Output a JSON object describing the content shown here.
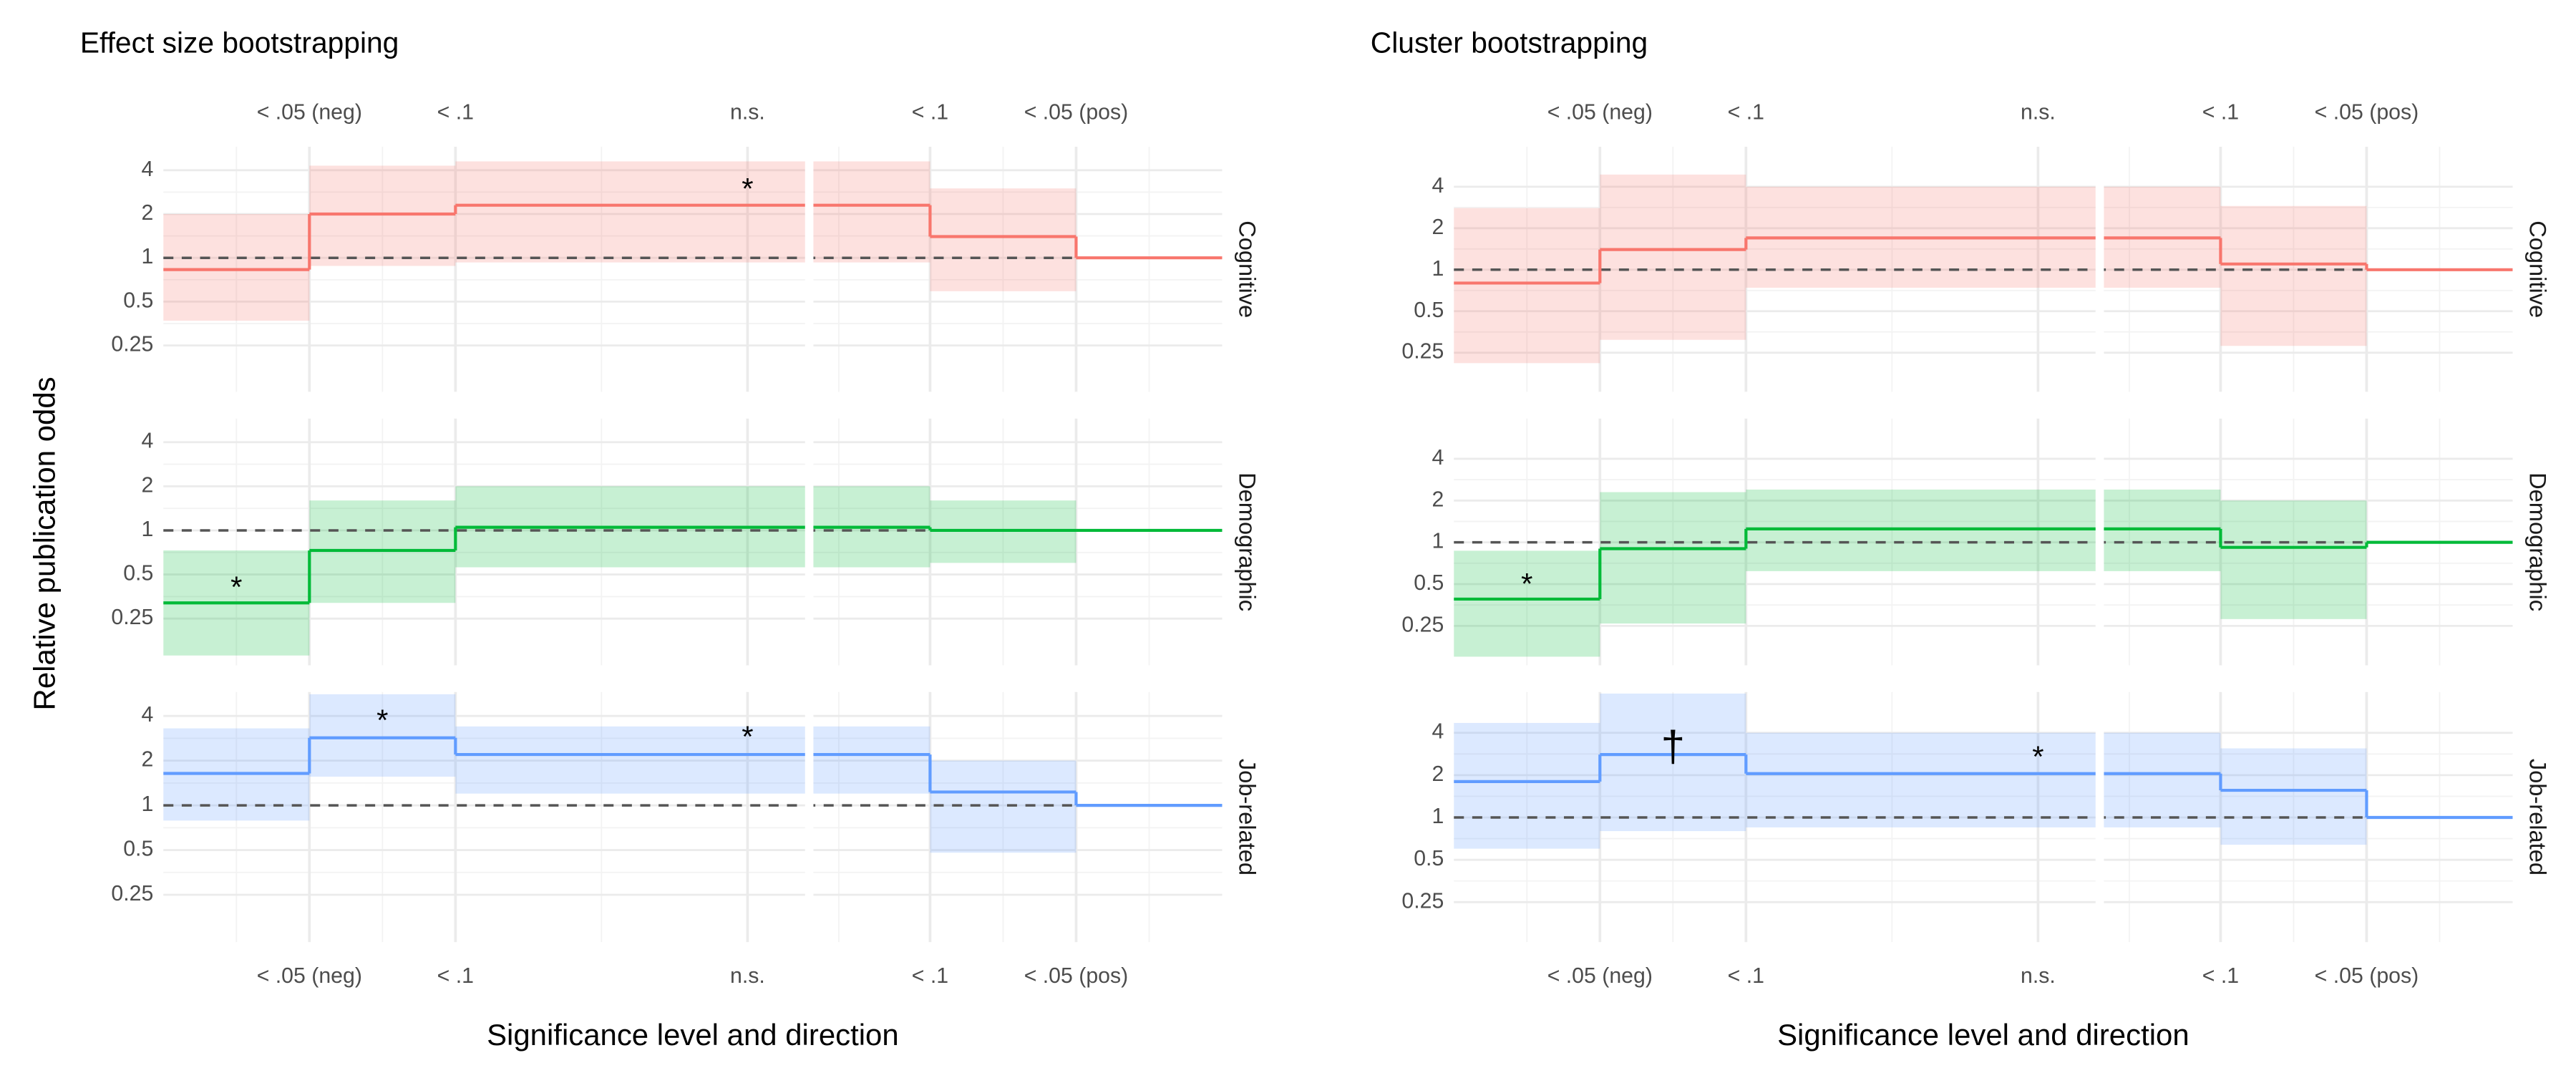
{
  "chart_data": [
    {
      "type": "step",
      "title": "Effect size bootstrapping",
      "xlabel": "Significance level and direction",
      "ylabel": "Relative publication odds",
      "xlim": [
        0,
        14.5
      ],
      "xticks": [
        {
          "value": 2,
          "label": "< .05 (neg)"
        },
        {
          "value": 4,
          "label": "< .1"
        },
        {
          "value": 8,
          "label": "n.s."
        },
        {
          "value": 10.5,
          "label": "< .1"
        },
        {
          "value": 12.5,
          "label": "< .05 (pos)"
        }
      ],
      "bins": [
        0,
        2,
        4,
        10.5,
        12.5,
        14.5
      ],
      "ylim": [
        0.12,
        5.8
      ],
      "yticks": [
        0.25,
        0.5,
        1,
        2,
        4
      ],
      "log_y": true,
      "reference": 1,
      "grid": true,
      "facets": [
        {
          "name": "Cognitive",
          "color": "#f8766d",
          "values": [
            0.83,
            2.0,
            2.3,
            1.4,
            1
          ],
          "lower": [
            0.37,
            0.88,
            0.93,
            0.59,
            1
          ],
          "upper": [
            2.0,
            4.3,
            4.6,
            3.0,
            1
          ],
          "annotations": [
            {
              "x": 8,
              "y": 3.2,
              "text": "*"
            }
          ]
        },
        {
          "name": "Demographic",
          "color": "#00ba38",
          "values": [
            0.32,
            0.73,
            1.05,
            1.0,
            1
          ],
          "lower": [
            0.14,
            0.32,
            0.56,
            0.6,
            1
          ],
          "upper": [
            0.73,
            1.6,
            2.0,
            1.6,
            1
          ],
          "annotations": [
            {
              "x": 1,
              "y": 0.44,
              "text": "*"
            }
          ]
        },
        {
          "name": "Job-related",
          "color": "#619cff",
          "values": [
            1.64,
            2.85,
            2.2,
            1.23,
            1
          ],
          "lower": [
            0.79,
            1.56,
            1.2,
            0.48,
            1
          ],
          "upper": [
            3.3,
            5.6,
            3.4,
            2.0,
            1
          ],
          "annotations": [
            {
              "x": 3,
              "y": 4.0,
              "text": "*"
            },
            {
              "x": 8,
              "y": 3.1,
              "text": "*"
            }
          ]
        }
      ]
    },
    {
      "type": "step",
      "title": "Cluster bootstrapping",
      "xlabel": "Significance level and direction",
      "xlim": [
        0,
        14.5
      ],
      "xticks": [
        {
          "value": 2,
          "label": "< .05 (neg)"
        },
        {
          "value": 4,
          "label": "< .1"
        },
        {
          "value": 8,
          "label": "n.s."
        },
        {
          "value": 10.5,
          "label": "< .1"
        },
        {
          "value": 12.5,
          "label": "< .05 (pos)"
        }
      ],
      "bins": [
        0,
        2,
        4,
        10.5,
        12.5,
        14.5
      ],
      "ylim": [
        0.13,
        7.8
      ],
      "yticks": [
        0.25,
        0.5,
        1,
        2,
        4
      ],
      "log_y": true,
      "reference": 1,
      "grid": true,
      "facets": [
        {
          "name": "Cognitive",
          "color": "#f8766d",
          "values": [
            0.8,
            1.4,
            1.7,
            1.1,
            1
          ],
          "lower": [
            0.21,
            0.31,
            0.74,
            0.28,
            1
          ],
          "upper": [
            2.8,
            4.9,
            4.0,
            2.9,
            1
          ]
        },
        {
          "name": "Demographic",
          "color": "#00ba38",
          "values": [
            0.39,
            0.9,
            1.25,
            0.92,
            1
          ],
          "lower": [
            0.15,
            0.26,
            0.62,
            0.28,
            1
          ],
          "upper": [
            0.87,
            2.3,
            2.4,
            2.0,
            1
          ],
          "annotations": [
            {
              "x": 1,
              "y": 0.54,
              "text": "*"
            }
          ]
        },
        {
          "name": "Job-related",
          "color": "#619cff",
          "values": [
            1.8,
            2.8,
            2.05,
            1.56,
            1
          ],
          "lower": [
            0.6,
            0.8,
            0.85,
            0.64,
            1
          ],
          "upper": [
            4.7,
            7.6,
            4.0,
            3.1,
            1
          ],
          "annotations": [
            {
              "x": 3,
              "y": 3.4,
              "text": "†"
            },
            {
              "x": 8,
              "y": 2.9,
              "text": "*"
            }
          ]
        }
      ]
    }
  ]
}
